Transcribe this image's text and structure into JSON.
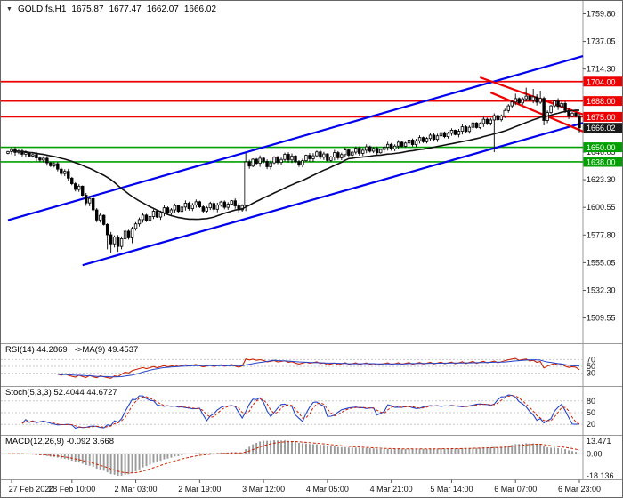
{
  "header": {
    "dropdown_icon": "▼",
    "symbol": "GOLD.fs,H1",
    "open": "1675.87",
    "high": "1677.47",
    "low": "1662.07",
    "close": "1666.02"
  },
  "chart_data": {
    "type": "candlestick",
    "symbol": "GOLD.fs",
    "timeframe": "H1",
    "ylim": [
      1489.5,
      1766.0
    ],
    "n_bars": 162,
    "first_open": 1645.0,
    "closes": [
      1646.5,
      1648.2,
      1645.8,
      1647.0,
      1644.3,
      1645.6,
      1642.8,
      1643.9,
      1641.2,
      1639.5,
      1641.0,
      1637.2,
      1634.8,
      1636.5,
      1632.0,
      1628.4,
      1630.2,
      1624.6,
      1620.0,
      1615.3,
      1618.0,
      1610.5,
      1604.2,
      1607.8,
      1598.5,
      1590.2,
      1594.0,
      1586.5,
      1578.0,
      1570.5,
      1576.2,
      1568.4,
      1574.8,
      1581.0,
      1575.5,
      1583.2,
      1587.0,
      1590.5,
      1594.2,
      1589.8,
      1593.0,
      1597.4,
      1592.6,
      1596.0,
      1600.2,
      1595.8,
      1598.5,
      1602.0,
      1597.2,
      1600.8,
      1604.0,
      1599.5,
      1602.6,
      1605.2,
      1601.0,
      1597.5,
      1600.2,
      1603.8,
      1599.0,
      1602.4,
      1605.0,
      1600.6,
      1603.2,
      1606.0,
      1601.8,
      1598.5,
      1602.0,
      1638.0,
      1634.5,
      1640.2,
      1636.8,
      1641.0,
      1638.4,
      1634.0,
      1637.2,
      1641.8,
      1637.5,
      1640.0,
      1644.2,
      1639.6,
      1642.8,
      1638.2,
      1635.5,
      1639.0,
      1643.4,
      1640.6,
      1643.0,
      1646.2,
      1641.8,
      1644.5,
      1639.2,
      1642.0,
      1645.6,
      1641.4,
      1644.0,
      1647.8,
      1643.5,
      1646.0,
      1649.2,
      1645.0,
      1647.6,
      1650.4,
      1646.8,
      1649.0,
      1645.5,
      1648.2,
      1650.0,
      1652.4,
      1648.6,
      1651.0,
      1654.2,
      1650.8,
      1653.5,
      1656.0,
      1652.2,
      1655.4,
      1658.0,
      1654.6,
      1657.2,
      1660.0,
      1656.5,
      1659.4,
      1662.0,
      1658.8,
      1661.5,
      1664.0,
      1660.5,
      1663.2,
      1666.8,
      1663.0,
      1666.4,
      1670.0,
      1666.2,
      1669.5,
      1673.0,
      1669.8,
      1672.4,
      1676.0,
      1672.6,
      1675.8,
      1680.2,
      1684.0,
      1687.2,
      1690.0,
      1686.4,
      1689.8,
      1692.0,
      1688.5,
      1691.4,
      1687.0,
      1690.2,
      1672.0,
      1678.5,
      1684.0,
      1688.0,
      1683.5,
      1686.0,
      1680.2,
      1675.5,
      1678.0,
      1675.9,
      1666.02
    ],
    "special_bars": {
      "28": {
        "l": 1566.0
      },
      "29": {
        "l": 1563.3
      },
      "30": {
        "l": 1567.5
      },
      "31": {
        "l": 1564.0
      },
      "33": {
        "l": 1569.0
      },
      "35": {
        "l": 1571.0
      },
      "67": {
        "h": 1645.2,
        "l": 1597.5
      },
      "137": {
        "l": 1646.0
      },
      "143": {
        "h": 1694.0
      },
      "146": {
        "h": 1699.0
      },
      "148": {
        "h": 1698.0
      },
      "150": {
        "h": 1696.5
      },
      "151": {
        "l": 1668.0
      },
      "161": {
        "o": 1675.87,
        "h": 1677.47,
        "l": 1662.07,
        "c": 1666.02
      }
    },
    "ma_period": 30,
    "y_ticks": [
      "1759.80",
      "1737.05",
      "1714.30",
      "1646.05",
      "1623.30",
      "1600.55",
      "1577.80",
      "1555.05",
      "1532.30",
      "1509.55"
    ],
    "resistance_levels": [
      {
        "price": 1704.0,
        "label": "1704.00"
      },
      {
        "price": 1688.0,
        "label": "1688.00"
      },
      {
        "price": 1675.0,
        "label": "1675.00"
      }
    ],
    "support_levels": [
      {
        "price": 1650.0,
        "label": "1650.00"
      },
      {
        "price": 1638.0,
        "label": "1638.00"
      }
    ],
    "current_price": {
      "value": 1666.02,
      "label": "1666.02"
    },
    "trend_lines": [
      {
        "name": "channel-upper-line",
        "color": "#0000ee",
        "bar1": 0,
        "price1": 1590.0,
        "bar2": 162,
        "price2": 1725.0
      },
      {
        "name": "channel-lower-line",
        "color": "#0000ee",
        "bar1": 21,
        "price1": 1553.0,
        "bar2": 162,
        "price2": 1670.0
      },
      {
        "name": "resistance-trend-upper",
        "color": "#ee0000",
        "bar1": 133,
        "price1": 1707.5,
        "bar2": 162,
        "price2": 1677.0
      },
      {
        "name": "resistance-trend-lower",
        "color": "#ee0000",
        "bar1": 136,
        "price1": 1695.0,
        "bar2": 162,
        "price2": 1663.0
      }
    ],
    "x_ticks": [
      {
        "bar": 1,
        "label": "27 Feb 2020"
      },
      {
        "bar": 18,
        "label": "28 Feb 10:00"
      },
      {
        "bar": 36,
        "label": "2 Mar 03:00"
      },
      {
        "bar": 54,
        "label": "2 Mar 19:00"
      },
      {
        "bar": 72,
        "label": "3 Mar 12:00"
      },
      {
        "bar": 90,
        "label": "4 Mar 05:00"
      },
      {
        "bar": 108,
        "label": "4 Mar 21:00"
      },
      {
        "bar": 125,
        "label": "5 Mar 14:00"
      },
      {
        "bar": 143,
        "label": "6 Mar 07:00"
      },
      {
        "bar": 161,
        "label": "6 Mar 23:00"
      }
    ],
    "indicators": [
      {
        "id": "rsi",
        "label": "RSI(14) 44.2869",
        "label2": "->MA(9) 49.4537",
        "period": 14,
        "ma_period": 9,
        "levels": [
          "70",
          "50",
          "30"
        ],
        "line_color": "#cc2200",
        "ma_color": "#2244cc"
      },
      {
        "id": "stochastic",
        "label": "Stoch(5,3,3) 52.4044 44.6727",
        "k_period": 5,
        "slowing": 3,
        "d_period": 3,
        "levels": [
          "80",
          "50",
          "20"
        ],
        "main_color": "#2244cc",
        "signal_color": "#cc2200"
      },
      {
        "id": "macd",
        "label": "MACD(12,26,9) -0.092 3.668",
        "fast": 12,
        "slow": 26,
        "signal": 9,
        "levels": [
          "13.471",
          "0.00",
          "-18.136"
        ],
        "hist_color": "#9a9a9a",
        "signal_color": "#cc2200"
      }
    ],
    "colors": {
      "resistance": "#ee0000",
      "support": "#00a000",
      "current_badge": "#1a1a1a",
      "candle_up": "#ffffff",
      "candle_down": "#000000",
      "ma": "#111111"
    }
  }
}
